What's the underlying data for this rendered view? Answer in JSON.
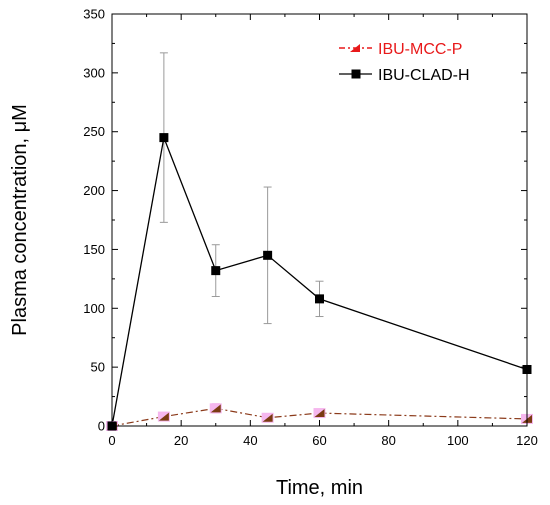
{
  "colors": {
    "series_black": "#000000",
    "series_red_legend": "#e8191a",
    "series_brown_line": "#8b3a1a",
    "marker_fill_pink": "#f5b7ee",
    "marker_fill_brown": "#7a3b12",
    "errorbar_gray": "#9a9a9a"
  },
  "chart_data": {
    "type": "line",
    "xlabel": "Time, min",
    "ylabel": "Plasma concentration, μM",
    "xlim": [
      0,
      120
    ],
    "ylim": [
      0,
      350
    ],
    "x_ticks": [
      0,
      20,
      40,
      60,
      80,
      100,
      120
    ],
    "y_ticks": [
      0,
      50,
      100,
      150,
      200,
      250,
      300,
      350
    ],
    "x_tick_labels": [
      "0",
      "20",
      "40",
      "60",
      "80",
      "100",
      "120"
    ],
    "y_tick_labels": [
      "0",
      "50",
      "100",
      "150",
      "200",
      "250",
      "300",
      "350"
    ],
    "grid": false,
    "legend_position": "top-right",
    "series": [
      {
        "name": "IBU-MCC-P",
        "x": [
          0,
          15,
          30,
          45,
          60,
          120
        ],
        "y": [
          0,
          8,
          15,
          7,
          11,
          6
        ],
        "err": [
          0,
          1,
          4,
          1,
          1,
          1
        ],
        "line_style": "dash-dot",
        "marker": "triangle"
      },
      {
        "name": "IBU-CLAD-H",
        "x": [
          0,
          15,
          30,
          45,
          60,
          120
        ],
        "y": [
          0,
          245,
          132,
          145,
          108,
          48
        ],
        "err": [
          0,
          72,
          22,
          58,
          15,
          0
        ],
        "line_style": "solid",
        "marker": "square"
      }
    ]
  }
}
